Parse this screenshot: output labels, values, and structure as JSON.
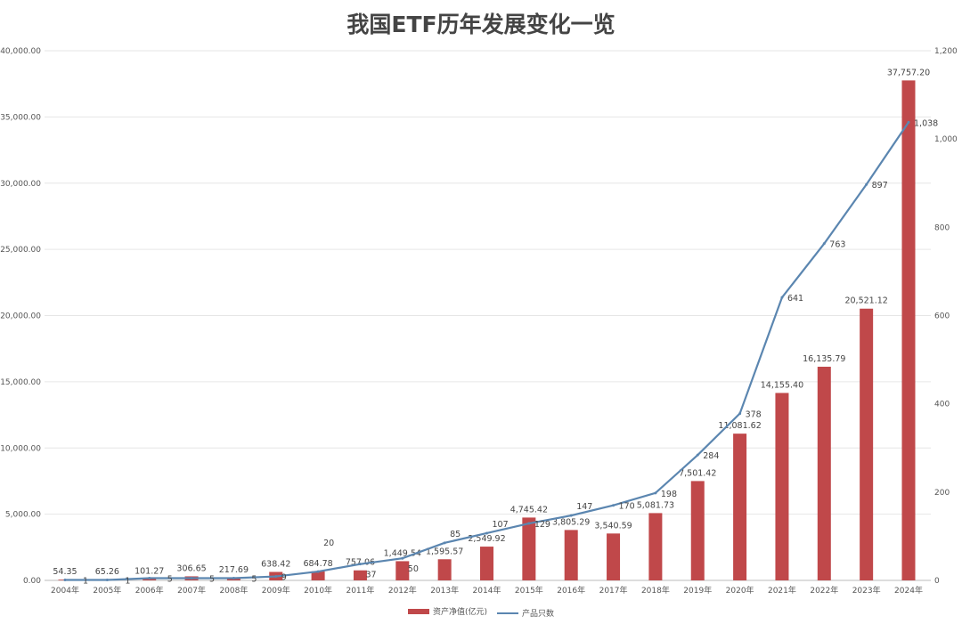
{
  "chart_data": {
    "type": "bar+line",
    "title": "我国ETF历年发展变化一览",
    "categories": [
      "2004年",
      "2005年",
      "2006年",
      "2007年",
      "2008年",
      "2009年",
      "2010年",
      "2011年",
      "2012年",
      "2013年",
      "2014年",
      "2015年",
      "2016年",
      "2017年",
      "2018年",
      "2019年",
      "2020年",
      "2021年",
      "2022年",
      "2023年",
      "2024年"
    ],
    "series": [
      {
        "name": "资产净值(亿元)",
        "type": "bar",
        "axis": "left",
        "color": "#c0484a",
        "values": [
          54.35,
          65.26,
          101.27,
          306.65,
          217.69,
          638.42,
          684.78,
          757.06,
          1449.54,
          1595.57,
          2549.92,
          4745.42,
          3805.29,
          3540.59,
          5081.73,
          7501.42,
          11081.62,
          14155.4,
          16135.79,
          20521.12,
          37757.2
        ],
        "labels": [
          "54.35",
          "65.26",
          "101.27",
          "306.65",
          "217.69",
          "638.42",
          "684.78",
          "757.06",
          "1,449.54",
          "1,595.57",
          "2,549.92",
          "4,745.42",
          "3,805.29",
          "3,540.59",
          "5,081.73",
          "7,501.42",
          "11,081.62",
          "14,155.40",
          "16,135.79",
          "20,521.12",
          "37,757.20"
        ]
      },
      {
        "name": "产品只数",
        "type": "line",
        "axis": "right",
        "color": "#5b86b0",
        "values": [
          1,
          1,
          5,
          5,
          5,
          9,
          20,
          37,
          50,
          85,
          107,
          129,
          147,
          170,
          198,
          284,
          378,
          641,
          763,
          897,
          1038
        ],
        "labels": [
          "1",
          "1",
          "5",
          "5",
          "5",
          "9",
          "20",
          "37",
          "50",
          "85",
          "107",
          "129",
          "147",
          "170",
          "198",
          "284",
          "378",
          "641",
          "763",
          "897",
          "1,038"
        ]
      }
    ],
    "left_axis": {
      "ylim": [
        0,
        40000
      ],
      "ticks": [
        "0.00",
        "5,000.00",
        "10,000.00",
        "15,000.00",
        "20,000.00",
        "25,000.00",
        "30,000.00",
        "35,000.00",
        "40,000.00"
      ]
    },
    "right_axis": {
      "ylim": [
        0,
        1200
      ],
      "ticks": [
        "0",
        "200",
        "400",
        "600",
        "800",
        "1,000",
        "1,200"
      ]
    },
    "grid": true,
    "legend": "bottom"
  }
}
